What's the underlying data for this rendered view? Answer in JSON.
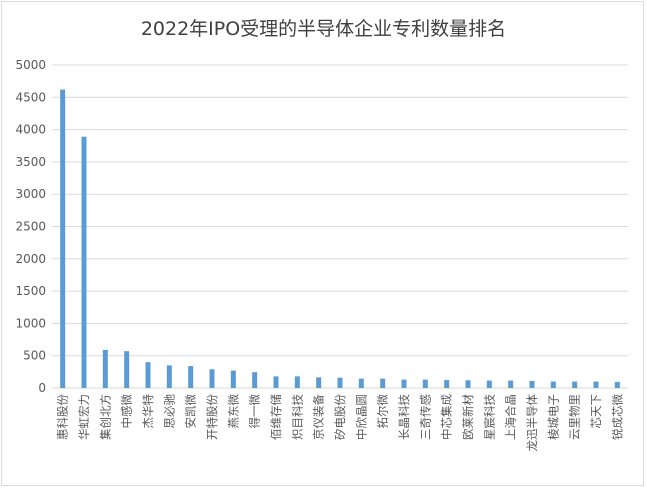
{
  "chart_data": {
    "type": "bar",
    "title": "2022年IPO受理的半导体企业专利数量排名",
    "xlabel": "",
    "ylabel": "",
    "ylim": [
      0,
      5000
    ],
    "yticks": [
      0,
      500,
      1000,
      1500,
      2000,
      2500,
      3000,
      3500,
      4000,
      4500,
      5000
    ],
    "grid": true,
    "bar_color": "#5b9bd5",
    "categories": [
      "惠科股份",
      "华虹宏力",
      "集创北方",
      "中感微",
      "杰华特",
      "思必驰",
      "安凯微",
      "开特股份",
      "燕东微",
      "得一微",
      "佰维存储",
      "炽目科技",
      "京仪装备",
      "矽电股份",
      "中欣晶圆",
      "拓尔微",
      "长晶科技",
      "三奇传感",
      "中芯集成",
      "欧莱新材",
      "星宸科技",
      "上海合晶",
      "龙迅半导体",
      "棱城电子",
      "云里物里",
      "芯天下",
      "锐成芯微"
    ],
    "values": [
      4620,
      3890,
      590,
      570,
      400,
      350,
      340,
      290,
      270,
      245,
      180,
      180,
      165,
      160,
      145,
      145,
      130,
      130,
      125,
      120,
      115,
      115,
      110,
      100,
      100,
      100,
      95
    ]
  }
}
